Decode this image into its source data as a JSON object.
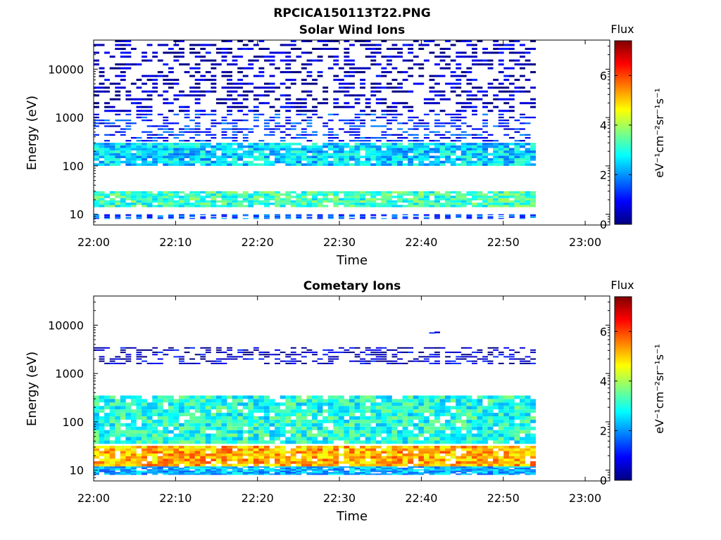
{
  "figure_title": "RPCICA150113T22.PNG",
  "colorbar": {
    "title": "Flux",
    "label": "eV⁻¹cm⁻²sr⁻¹s⁻¹",
    "min": 0,
    "max": 7.4,
    "ticks": [
      "0",
      "2",
      "4",
      "6"
    ],
    "colormap": "jet"
  },
  "chart_data": [
    {
      "type": "heatmap",
      "title": "Solar Wind Ions",
      "xlabel": "Time",
      "ylabel": "Energy (eV)",
      "x_ticks": [
        "22:00",
        "22:10",
        "22:20",
        "22:30",
        "22:40",
        "22:50",
        "23:00"
      ],
      "y_ticks": [
        "10",
        "100",
        "1000",
        "10000"
      ],
      "y_scale": "log",
      "ylim": [
        6,
        40000
      ],
      "xlim": [
        "22:00",
        "23:03"
      ],
      "data_time_range": [
        "22:00",
        "22:54"
      ],
      "value_range": [
        0,
        7.4
      ],
      "features": [
        {
          "energy_eV": [
            8,
            10
          ],
          "flux": 1.5,
          "pattern": "every other sweep"
        },
        {
          "energy_eV": [
            14,
            30
          ],
          "flux": 3.2,
          "note": "secondary peak"
        },
        {
          "energy_eV": [
            100,
            300
          ],
          "flux": 2.5,
          "note": "main solar wind beam"
        },
        {
          "energy_eV": [
            300,
            1200
          ],
          "flux": 1.2,
          "note": "sparse"
        },
        {
          "energy_eV": [
            1200,
            40000
          ],
          "flux": 0.4,
          "note": "sparse high-energy streaks"
        }
      ]
    },
    {
      "type": "heatmap",
      "title": "Cometary Ions",
      "xlabel": "Time",
      "ylabel": "Energy (eV)",
      "x_ticks": [
        "22:00",
        "22:10",
        "22:20",
        "22:30",
        "22:40",
        "22:50",
        "23:00"
      ],
      "y_ticks": [
        "10",
        "100",
        "1000",
        "10000"
      ],
      "y_scale": "log",
      "ylim": [
        6,
        40000
      ],
      "xlim": [
        "22:00",
        "23:03"
      ],
      "data_time_range": [
        "22:00",
        "22:54"
      ],
      "value_range": [
        0,
        7.4
      ],
      "features": [
        {
          "energy_eV": [
            8,
            12
          ],
          "flux": 2.2
        },
        {
          "energy_eV": [
            12,
            32
          ],
          "flux": 5.2,
          "note": "strongest signal"
        },
        {
          "energy_eV": [
            35,
            350
          ],
          "flux": 3.0,
          "note": "broad cometary band"
        },
        {
          "energy_eV": [
            1500,
            3500
          ],
          "flux": 0.5,
          "note": "sparse high-energy band"
        },
        {
          "energy_eV": [
            7000,
            7500
          ],
          "flux": 0.6,
          "time": "22:41"
        }
      ]
    }
  ]
}
